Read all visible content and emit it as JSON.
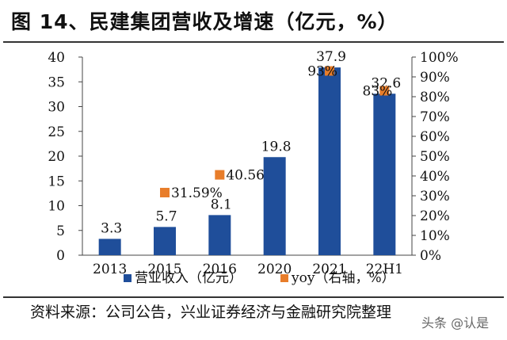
{
  "title": "图 14、民建集团营收及增速（亿元，%）",
  "source": "资料来源：公司公告，兴业证券经济与金融研究院整理",
  "watermark": "头条 @认是",
  "colors": {
    "bar": "#1f4e9a",
    "yoy": "#e87d2a",
    "text": "#111111"
  },
  "chart_data": {
    "type": "bar",
    "categories": [
      "2013",
      "2015",
      "2016",
      "2020",
      "2021",
      "22H1"
    ],
    "series": [
      {
        "name": "营业收入（亿元）",
        "kind": "bar",
        "axis": "left",
        "values": [
          3.3,
          5.7,
          8.1,
          19.8,
          37.9,
          32.6
        ],
        "labels": [
          "3.3",
          "5.7",
          "8.1",
          "19.8",
          "37.9",
          "32.6"
        ]
      },
      {
        "name": "yoy（右轴，%）",
        "kind": "marker",
        "axis": "right",
        "values": [
          null,
          31.59,
          40.56,
          null,
          93,
          83
        ],
        "labels": [
          "",
          "31.59%",
          "40.56%",
          "",
          "93%",
          "83%"
        ]
      }
    ],
    "y_left": {
      "ylim": [
        0,
        40
      ],
      "ticks": [
        "0",
        "5",
        "10",
        "15",
        "20",
        "25",
        "30",
        "35",
        "40"
      ]
    },
    "y_right": {
      "ylim": [
        0,
        100
      ],
      "ticks": [
        "0%",
        "10%",
        "20%",
        "30%",
        "40%",
        "50%",
        "60%",
        "70%",
        "80%",
        "90%",
        "100%"
      ]
    },
    "legend_position": "bottom",
    "grid": false
  }
}
